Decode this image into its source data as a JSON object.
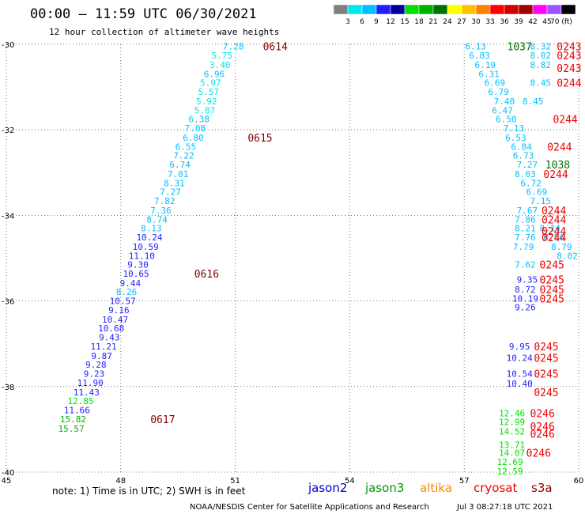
{
  "header": {
    "title": "00:00 — 11:59 UTC 06/30/2021",
    "subtitle": "12 hour collection of altimeter wave heights"
  },
  "footer": {
    "note": "note:  1) Time is in UTC; 2) SWH is in feet",
    "credit": "NOAA/NESDIS Center for Satellite Applications and Research",
    "timestamp": "Jul  3 08:27:18 UTC 2021"
  },
  "legend": {
    "satellites": [
      {
        "name": "jason2",
        "color": "#0000cc"
      },
      {
        "name": "jason3",
        "color": "#009900"
      },
      {
        "name": "altika",
        "color": "#ff8800"
      },
      {
        "name": "cryosat",
        "color": "#ee0000"
      },
      {
        "name": "s3a",
        "color": "#880000"
      }
    ],
    "colorscale": {
      "labels": [
        "3",
        "6",
        "9",
        "12",
        "15",
        "18",
        "21",
        "24",
        "27",
        "30",
        "33",
        "36",
        "39",
        "42",
        "45",
        "70 (ft)"
      ],
      "colors": [
        "#808080",
        "#00e5ee",
        "#00bfff",
        "#1e1eff",
        "#0000a0",
        "#00e000",
        "#00b000",
        "#007000",
        "#ffff00",
        "#ffc000",
        "#ff8000",
        "#ff0000",
        "#d00000",
        "#a00000",
        "#ff00ff",
        "#a050ff",
        "#000000"
      ]
    }
  },
  "chart_data": {
    "type": "scatter",
    "title": "00:00 — 11:59 UTC 06/30/2021",
    "subtitle": "12 hour collection of altimeter wave heights",
    "xlim": [
      45,
      60
    ],
    "ylim": [
      -40,
      -30
    ],
    "x_ticks": [
      "45",
      "48",
      "51",
      "54",
      "57",
      "60"
    ],
    "y_ticks": [
      "-30",
      "-32",
      "-34",
      "-36",
      "-38",
      "-40"
    ],
    "grid": true,
    "unit": "ft",
    "wave_heights": [
      {
        "x": 50.95,
        "y": -30.05,
        "v": "7.28",
        "c": "#00bfff"
      },
      {
        "x": 50.65,
        "y": -30.26,
        "v": "5.75",
        "c": "#00e5ee"
      },
      {
        "x": 50.6,
        "y": -30.48,
        "v": "3.40",
        "c": "#00e5ee"
      },
      {
        "x": 50.45,
        "y": -30.69,
        "v": "6.96",
        "c": "#00bfff"
      },
      {
        "x": 50.35,
        "y": -30.9,
        "v": "5.97",
        "c": "#00e5ee"
      },
      {
        "x": 50.3,
        "y": -31.11,
        "v": "5.57",
        "c": "#00e5ee"
      },
      {
        "x": 50.25,
        "y": -31.33,
        "v": "5.92",
        "c": "#00e5ee"
      },
      {
        "x": 50.2,
        "y": -31.54,
        "v": "5.87",
        "c": "#00e5ee"
      },
      {
        "x": 50.05,
        "y": -31.75,
        "v": "6.38",
        "c": "#00bfff"
      },
      {
        "x": 49.95,
        "y": -31.96,
        "v": "7.08",
        "c": "#00bfff"
      },
      {
        "x": 49.9,
        "y": -32.18,
        "v": "6.80",
        "c": "#00bfff"
      },
      {
        "x": 49.7,
        "y": -32.39,
        "v": "6.55",
        "c": "#00bfff"
      },
      {
        "x": 49.65,
        "y": -32.6,
        "v": "7.22",
        "c": "#00bfff"
      },
      {
        "x": 49.55,
        "y": -32.81,
        "v": "6.74",
        "c": "#00bfff"
      },
      {
        "x": 49.5,
        "y": -33.03,
        "v": "7.01",
        "c": "#00bfff"
      },
      {
        "x": 49.4,
        "y": -33.24,
        "v": "8.31",
        "c": "#00bfff"
      },
      {
        "x": 49.3,
        "y": -33.45,
        "v": "7.27",
        "c": "#00bfff"
      },
      {
        "x": 49.15,
        "y": -33.66,
        "v": "7.82",
        "c": "#00bfff"
      },
      {
        "x": 49.05,
        "y": -33.88,
        "v": "7.36",
        "c": "#00bfff"
      },
      {
        "x": 48.95,
        "y": -34.09,
        "v": "8.74",
        "c": "#00bfff"
      },
      {
        "x": 48.8,
        "y": -34.3,
        "v": "8.13",
        "c": "#00bfff"
      },
      {
        "x": 48.75,
        "y": -34.51,
        "v": "10.24",
        "c": "#1e1eff"
      },
      {
        "x": 48.65,
        "y": -34.73,
        "v": "10.59",
        "c": "#1e1eff"
      },
      {
        "x": 48.55,
        "y": -34.94,
        "v": "11.10",
        "c": "#1e1eff"
      },
      {
        "x": 48.45,
        "y": -35.15,
        "v": "9.30",
        "c": "#1e1eff"
      },
      {
        "x": 48.4,
        "y": -35.36,
        "v": "10.65",
        "c": "#1e1eff"
      },
      {
        "x": 48.25,
        "y": -35.58,
        "v": "9.44",
        "c": "#1e1eff"
      },
      {
        "x": 48.15,
        "y": -35.79,
        "v": "8.26",
        "c": "#00bfff"
      },
      {
        "x": 48.05,
        "y": -36.0,
        "v": "10.57",
        "c": "#1e1eff"
      },
      {
        "x": 47.95,
        "y": -36.21,
        "v": "9.16",
        "c": "#1e1eff"
      },
      {
        "x": 47.85,
        "y": -36.43,
        "v": "10.47",
        "c": "#1e1eff"
      },
      {
        "x": 47.75,
        "y": -36.64,
        "v": "10.68",
        "c": "#1e1eff"
      },
      {
        "x": 47.7,
        "y": -36.85,
        "v": "9.43",
        "c": "#1e1eff"
      },
      {
        "x": 47.55,
        "y": -37.06,
        "v": "11.21",
        "c": "#1e1eff"
      },
      {
        "x": 47.5,
        "y": -37.28,
        "v": "9.87",
        "c": "#1e1eff"
      },
      {
        "x": 47.35,
        "y": -37.49,
        "v": "9.28",
        "c": "#1e1eff"
      },
      {
        "x": 47.3,
        "y": -37.7,
        "v": "9.23",
        "c": "#1e1eff"
      },
      {
        "x": 47.2,
        "y": -37.91,
        "v": "11.90",
        "c": "#1e1eff"
      },
      {
        "x": 47.1,
        "y": -38.13,
        "v": "11.43",
        "c": "#1e1eff"
      },
      {
        "x": 46.95,
        "y": -38.34,
        "v": "12.85",
        "c": "#00e000"
      },
      {
        "x": 46.85,
        "y": -38.55,
        "v": "11.66",
        "c": "#1e1eff"
      },
      {
        "x": 46.75,
        "y": -38.76,
        "v": "15.82",
        "c": "#00b000"
      },
      {
        "x": 46.7,
        "y": -38.98,
        "v": "15.57",
        "c": "#00b000"
      },
      {
        "x": 57.3,
        "y": -30.05,
        "v": "6.13",
        "c": "#00bfff"
      },
      {
        "x": 57.4,
        "y": -30.26,
        "v": "6.83",
        "c": "#00bfff"
      },
      {
        "x": 57.55,
        "y": -30.48,
        "v": "6.19",
        "c": "#00bfff"
      },
      {
        "x": 57.65,
        "y": -30.69,
        "v": "6.31",
        "c": "#00bfff"
      },
      {
        "x": 57.8,
        "y": -30.9,
        "v": "6.69",
        "c": "#00bfff"
      },
      {
        "x": 57.9,
        "y": -31.11,
        "v": "6.79",
        "c": "#00bfff"
      },
      {
        "x": 58.05,
        "y": -31.33,
        "v": "7.40",
        "c": "#00bfff"
      },
      {
        "x": 58.0,
        "y": -31.54,
        "v": "6.47",
        "c": "#00bfff"
      },
      {
        "x": 58.1,
        "y": -31.75,
        "v": "6.50",
        "c": "#00bfff"
      },
      {
        "x": 58.3,
        "y": -31.96,
        "v": "7.13",
        "c": "#00bfff"
      },
      {
        "x": 58.35,
        "y": -32.18,
        "v": "6.53",
        "c": "#00bfff"
      },
      {
        "x": 58.5,
        "y": -32.39,
        "v": "6.84",
        "c": "#00bfff"
      },
      {
        "x": 58.55,
        "y": -32.6,
        "v": "6.73",
        "c": "#00bfff"
      },
      {
        "x": 58.65,
        "y": -32.81,
        "v": "7.27",
        "c": "#00bfff"
      },
      {
        "x": 58.6,
        "y": -33.03,
        "v": "8.03",
        "c": "#00bfff"
      },
      {
        "x": 58.75,
        "y": -33.24,
        "v": "6.72",
        "c": "#00bfff"
      },
      {
        "x": 58.9,
        "y": -33.45,
        "v": "6.69",
        "c": "#00bfff"
      },
      {
        "x": 59.0,
        "y": -33.66,
        "v": "7.15",
        "c": "#00bfff"
      },
      {
        "x": 58.65,
        "y": -33.88,
        "v": "7.67",
        "c": "#00bfff"
      },
      {
        "x": 58.6,
        "y": -34.09,
        "v": "7.86",
        "c": "#00bfff"
      },
      {
        "x": 58.6,
        "y": -34.3,
        "v": "8.21",
        "c": "#00bfff"
      },
      {
        "x": 58.6,
        "y": -34.51,
        "v": "7.76",
        "c": "#00bfff"
      },
      {
        "x": 58.55,
        "y": -34.73,
        "v": "7.79",
        "c": "#00bfff"
      },
      {
        "x": 59.25,
        "y": -34.3,
        "v": "8.14",
        "c": "#00bfff"
      },
      {
        "x": 59.35,
        "y": -34.51,
        "v": "8.56",
        "c": "#00bfff"
      },
      {
        "x": 59.55,
        "y": -34.73,
        "v": "8.79",
        "c": "#00bfff"
      },
      {
        "x": 59.7,
        "y": -34.94,
        "v": "8.02",
        "c": "#00bfff"
      },
      {
        "x": 58.6,
        "y": -35.15,
        "v": "7.62",
        "c": "#00bfff"
      },
      {
        "x": 58.65,
        "y": -35.5,
        "v": "9.35",
        "c": "#1e1eff"
      },
      {
        "x": 58.6,
        "y": -35.73,
        "v": "8.72",
        "c": "#1e1eff"
      },
      {
        "x": 58.6,
        "y": -35.94,
        "v": "10.19",
        "c": "#1e1eff"
      },
      {
        "x": 58.6,
        "y": -36.15,
        "v": "9.26",
        "c": "#1e1eff"
      },
      {
        "x": 58.45,
        "y": -37.06,
        "v": "9.95",
        "c": "#1e1eff"
      },
      {
        "x": 58.45,
        "y": -37.33,
        "v": "10.24",
        "c": "#1e1eff"
      },
      {
        "x": 58.45,
        "y": -37.7,
        "v": "10.54",
        "c": "#1e1eff"
      },
      {
        "x": 58.45,
        "y": -37.93,
        "v": "10.40",
        "c": "#1e1eff"
      },
      {
        "x": 58.25,
        "y": -38.62,
        "v": "12.46",
        "c": "#00e000"
      },
      {
        "x": 58.25,
        "y": -38.83,
        "v": "12.99",
        "c": "#00e000"
      },
      {
        "x": 58.25,
        "y": -39.05,
        "v": "14.52",
        "c": "#00e000"
      },
      {
        "x": 58.25,
        "y": -39.36,
        "v": "13.71",
        "c": "#00e000"
      },
      {
        "x": 58.25,
        "y": -39.55,
        "v": "14.07",
        "c": "#00e000"
      },
      {
        "x": 58.2,
        "y": -39.76,
        "v": "12.69",
        "c": "#00e000"
      },
      {
        "x": 58.2,
        "y": -39.98,
        "v": "12.59",
        "c": "#00e000"
      },
      {
        "x": 59.0,
        "y": -30.05,
        "v": "8.32",
        "c": "#00bfff"
      },
      {
        "x": 59.0,
        "y": -30.26,
        "v": "8.02",
        "c": "#00bfff"
      },
      {
        "x": 59.0,
        "y": -30.48,
        "v": "8.82",
        "c": "#00bfff"
      },
      {
        "x": 59.0,
        "y": -30.9,
        "v": "8.45",
        "c": "#00bfff"
      },
      {
        "x": 58.8,
        "y": -31.33,
        "v": "8.45",
        "c": "#00bfff"
      }
    ],
    "pass_labels": [
      {
        "x": 52.05,
        "y": -30.05,
        "v": "0614",
        "c": "#880000"
      },
      {
        "x": 51.65,
        "y": -32.18,
        "v": "0615",
        "c": "#880000"
      },
      {
        "x": 50.25,
        "y": -35.36,
        "v": "0616",
        "c": "#880000"
      },
      {
        "x": 49.1,
        "y": -38.76,
        "v": "0617",
        "c": "#880000"
      },
      {
        "x": 58.45,
        "y": -30.05,
        "v": "1037",
        "c": "#007000"
      },
      {
        "x": 59.45,
        "y": -32.81,
        "v": "1038",
        "c": "#007000"
      },
      {
        "x": 59.75,
        "y": -30.05,
        "v": "0243",
        "c": "#ee0000"
      },
      {
        "x": 59.75,
        "y": -30.26,
        "v": "0243",
        "c": "#ee0000"
      },
      {
        "x": 59.75,
        "y": -30.55,
        "v": "0243",
        "c": "#ee0000"
      },
      {
        "x": 59.75,
        "y": -30.9,
        "v": "0244",
        "c": "#ee0000"
      },
      {
        "x": 59.65,
        "y": -31.75,
        "v": "0244",
        "c": "#ee0000"
      },
      {
        "x": 59.5,
        "y": -32.39,
        "v": "0244",
        "c": "#ee0000"
      },
      {
        "x": 59.4,
        "y": -33.03,
        "v": "0244",
        "c": "#ee0000"
      },
      {
        "x": 59.35,
        "y": -33.88,
        "v": "0244",
        "c": "#ee0000"
      },
      {
        "x": 59.35,
        "y": -34.09,
        "v": "0244",
        "c": "#ee0000"
      },
      {
        "x": 59.35,
        "y": -34.36,
        "v": "0244",
        "c": "#ee0000"
      },
      {
        "x": 59.35,
        "y": -34.51,
        "v": "0244",
        "c": "#ee0000"
      },
      {
        "x": 59.3,
        "y": -35.15,
        "v": "0245",
        "c": "#ee0000"
      },
      {
        "x": 59.3,
        "y": -35.5,
        "v": "0245",
        "c": "#ee0000"
      },
      {
        "x": 59.3,
        "y": -35.73,
        "v": "0245",
        "c": "#ee0000"
      },
      {
        "x": 59.3,
        "y": -35.94,
        "v": "0245",
        "c": "#ee0000"
      },
      {
        "x": 59.15,
        "y": -37.06,
        "v": "0245",
        "c": "#ee0000"
      },
      {
        "x": 59.15,
        "y": -37.33,
        "v": "0245",
        "c": "#ee0000"
      },
      {
        "x": 59.15,
        "y": -37.7,
        "v": "0245",
        "c": "#ee0000"
      },
      {
        "x": 59.15,
        "y": -38.13,
        "v": "0245",
        "c": "#ee0000"
      },
      {
        "x": 59.05,
        "y": -38.62,
        "v": "0246",
        "c": "#ee0000"
      },
      {
        "x": 59.05,
        "y": -38.93,
        "v": "0246",
        "c": "#ee0000"
      },
      {
        "x": 59.05,
        "y": -39.1,
        "v": "0246",
        "c": "#ee0000"
      },
      {
        "x": 58.95,
        "y": -39.55,
        "v": "0246",
        "c": "#ee0000"
      }
    ]
  }
}
